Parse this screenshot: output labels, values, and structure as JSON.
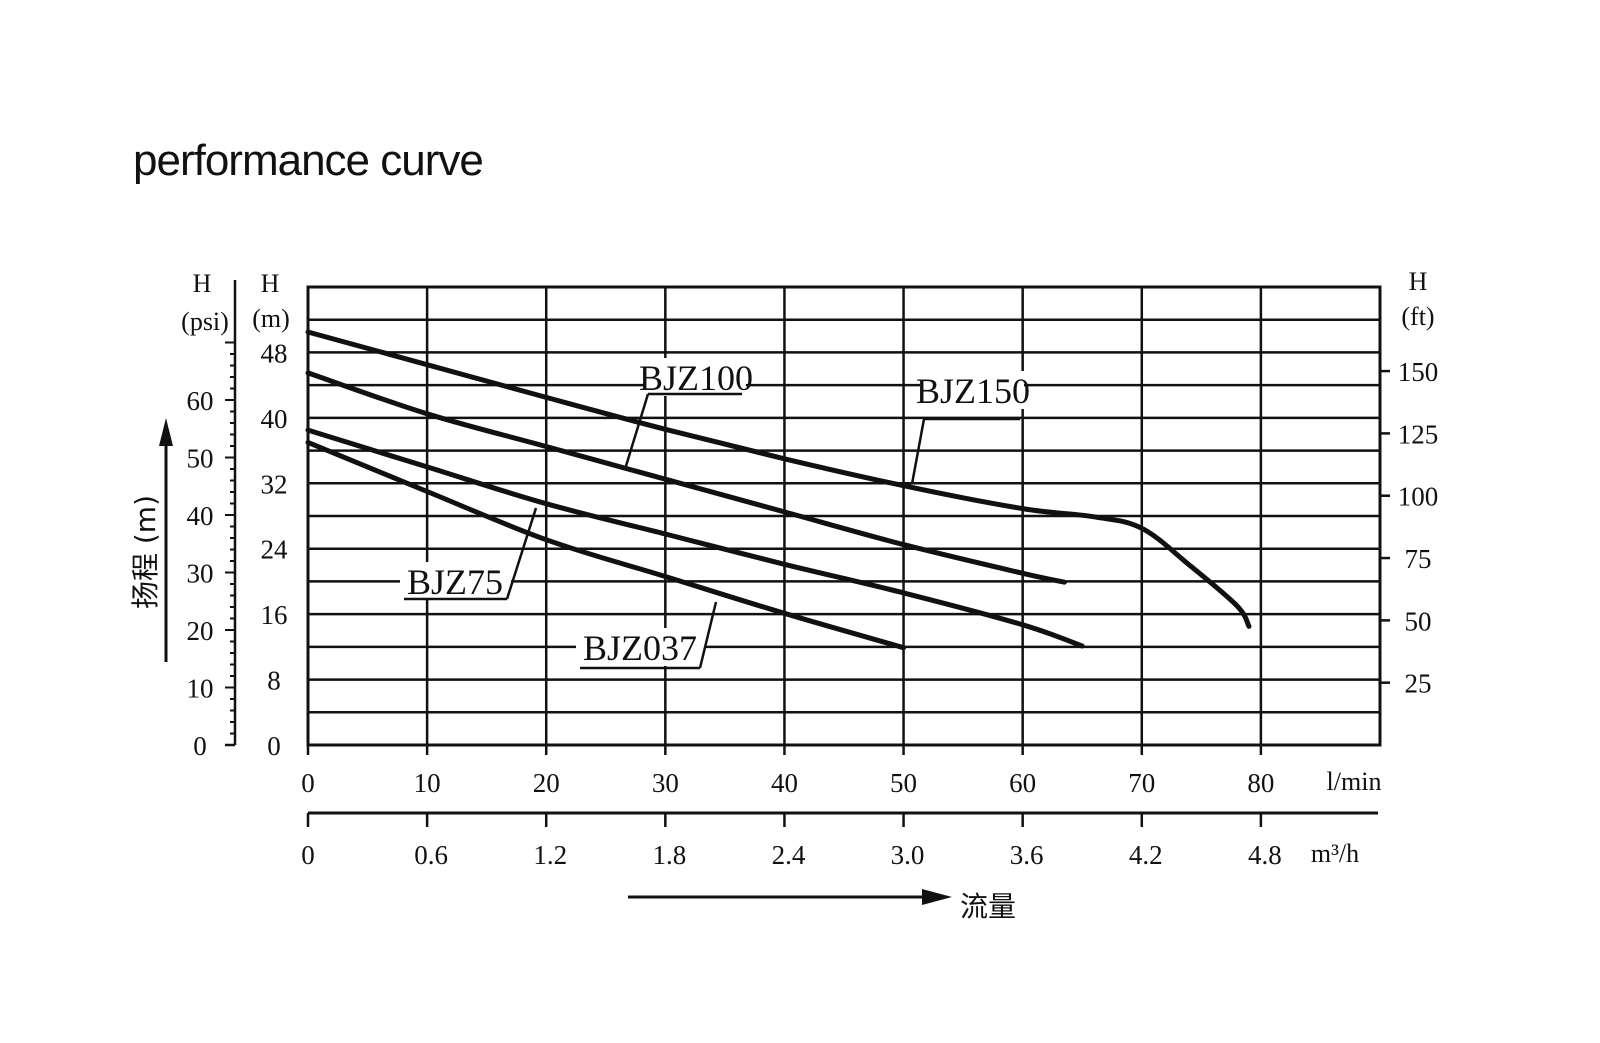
{
  "title": "performance curve",
  "chart_data": {
    "type": "line",
    "title": "performance curve",
    "xlabel": "流量",
    "ylabel": "扬程 (m)",
    "x_unit_primary": "l/min",
    "x_unit_secondary": "m³/h",
    "xlim": [
      0,
      90
    ],
    "ylim": [
      0,
      56
    ],
    "x_ticks": [
      0,
      10,
      20,
      30,
      40,
      50,
      60,
      70,
      80
    ],
    "x2_tick_labels": [
      "0",
      "0.6",
      "1.2",
      "1.8",
      "2.4",
      "3.0",
      "3.6",
      "4.2",
      "4.8"
    ],
    "y_ticks_m": [
      0,
      8,
      16,
      24,
      32,
      40,
      48
    ],
    "y_unit_m_label": "H",
    "y_unit_m": "(m)",
    "y_ticks_psi": [
      0,
      10,
      20,
      30,
      40,
      50,
      60
    ],
    "y_unit_psi_label": "H",
    "y_unit_psi": "(psi)",
    "y_ticks_ft": [
      25,
      50,
      75,
      100,
      125,
      150
    ],
    "y_unit_ft_label": "H",
    "y_unit_ft": "(ft)",
    "grid": true,
    "series": [
      {
        "name": "BJZ150",
        "x": [
          0,
          10,
          20,
          30,
          40,
          50,
          60,
          66,
          70,
          74,
          78,
          79
        ],
        "y": [
          50.5,
          46.5,
          42.5,
          38.6,
          35,
          31.7,
          28.9,
          27.9,
          26.5,
          22,
          17,
          14.5
        ]
      },
      {
        "name": "BJZ100",
        "x": [
          0,
          10,
          20,
          30,
          40,
          50,
          60,
          63.5
        ],
        "y": [
          45.5,
          40.5,
          36.5,
          32.5,
          28.5,
          24.5,
          21,
          19.9
        ]
      },
      {
        "name": "BJZ75",
        "x": [
          0,
          10,
          20,
          30,
          40,
          50,
          60,
          65
        ],
        "y": [
          38.5,
          34,
          29.5,
          25.8,
          22.1,
          18.6,
          14.7,
          12.1
        ]
      },
      {
        "name": "BJZ037",
        "x": [
          0,
          10,
          20,
          30,
          40,
          50
        ],
        "y": [
          37,
          31,
          25.1,
          20.6,
          16.1,
          11.9
        ]
      }
    ]
  }
}
